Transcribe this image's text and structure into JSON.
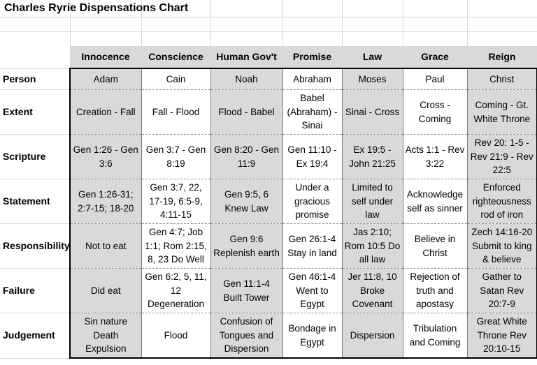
{
  "title": "Charles Ryrie Dispensations Chart",
  "columns": [
    "Innocence",
    "Conscience",
    "Human Gov't",
    "Promise",
    "Law",
    "Grace",
    "Reign"
  ],
  "rows": [
    {
      "label": "Person",
      "cells": [
        "Adam",
        "Cain",
        "Noah",
        "Abraham",
        "Moses",
        "Paul",
        "Christ"
      ]
    },
    {
      "label": "Extent",
      "cells": [
        "Creation - Fall",
        "Fall - Flood",
        "Flood - Babel",
        "Babel (Abraham) - Sinai",
        "Sinai - Cross",
        "Cross - Coming",
        "Coming - Gt. White Throne"
      ]
    },
    {
      "label": "Scripture",
      "cells": [
        "Gen 1:26 - Gen 3:6",
        "Gen 3:7 - Gen 8:19",
        "Gen 8:20 - Gen 11:9",
        "Gen 11:10 - Ex 19:4",
        "Ex 19:5 - John 21:25",
        "Acts 1:1 - Rev 3:22",
        "Rev 20: 1-5 - Rev 21:9 - Rev 22:5"
      ]
    },
    {
      "label": "Statement",
      "cells": [
        "Gen 1:26-31; 2:7-15; 18-20",
        "Gen 3:7, 22, 17-19, 6:5-9, 4:11-15",
        "Gen 9:5, 6 Knew Law",
        "Under a gracious promise",
        "Limited to self under law",
        "Acknowledge self as sinner",
        "Enforced righteousness rod of iron"
      ]
    },
    {
      "label": "Responsibility",
      "cells": [
        "Not to eat",
        "Gen 4:7; Job 1:1; Rom 2:15, 8, 23 Do Well",
        "Gen 9:6 Replenish earth",
        "Gen 26:1-4 Stay in land",
        "Jas 2:10; Rom 10:5 Do all law",
        "Believe in Christ",
        "Zech 14:16-20 Submit to king & believe"
      ]
    },
    {
      "label": "Failure",
      "cells": [
        "Did eat",
        "Gen 6:2, 5, 11, 12 Degeneration",
        "Gen 11:1-4 Built Tower",
        "Gen 46:1-4 Went to Egypt",
        "Jer 11:8, 10 Broke Covenant",
        "Rejection of truth and apostasy",
        "Gather to Satan Rev 20:7-9"
      ]
    },
    {
      "label": "Judgement",
      "cells": [
        "Sin nature Death Expulsion",
        "Flood",
        "Confusion of Tongues and Dispersion",
        "Bondage in Egypt",
        "Dispersion",
        "Tribulation and Coming",
        "Great White Throne Rev 20:10-15"
      ]
    }
  ]
}
